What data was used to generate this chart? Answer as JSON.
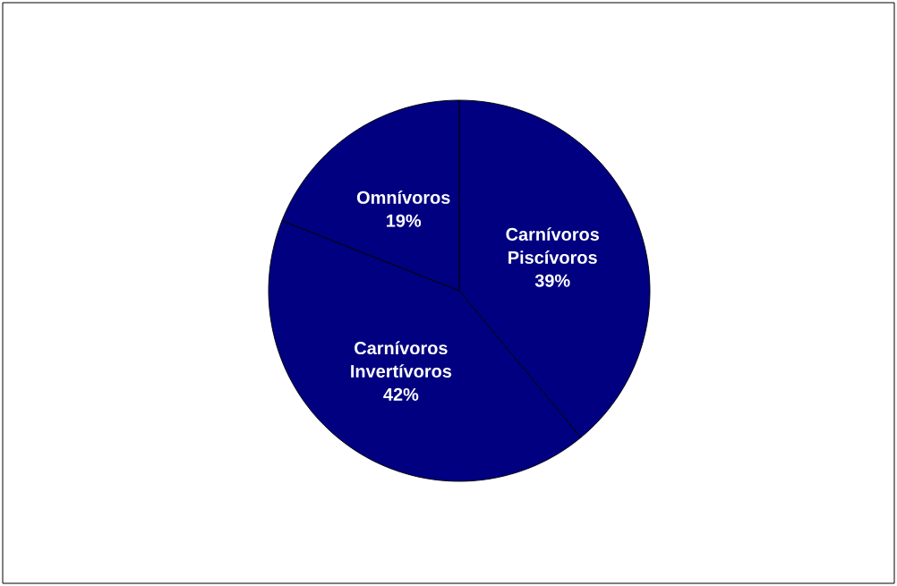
{
  "chart_data": {
    "type": "pie",
    "categories": [
      "Carnívoros Piscívoros",
      "Carnívoros Invertívoros",
      "Omnívoros"
    ],
    "values": [
      39,
      42,
      19
    ],
    "value_labels": [
      "39%",
      "42%",
      "19%"
    ],
    "colors": [
      "#000080",
      "#000080",
      "#000080"
    ]
  }
}
